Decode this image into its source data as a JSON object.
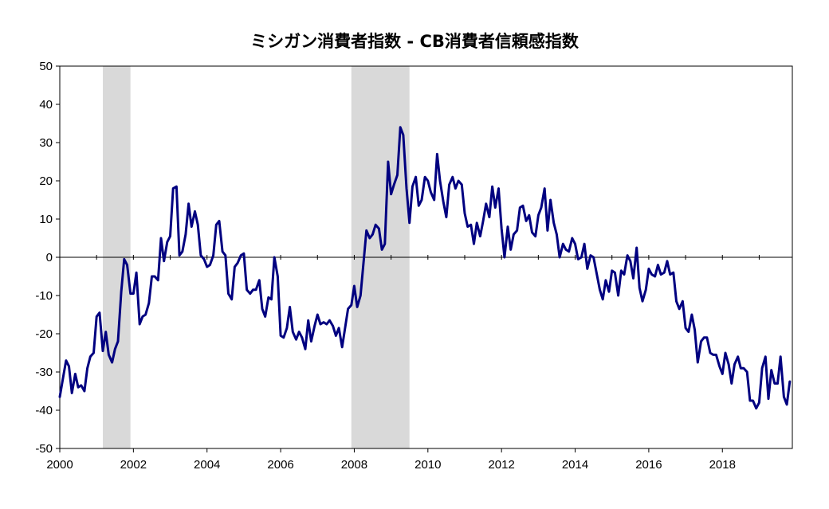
{
  "chart_data": {
    "type": "line",
    "title": "ミシガン消費者指数 - CB消費者信頼感指数",
    "xlabel": "",
    "ylabel": "",
    "xlim": [
      2000.0,
      2019.9
    ],
    "ylim": [
      -50,
      50
    ],
    "x_ticks": [
      2000,
      2002,
      2004,
      2006,
      2008,
      2010,
      2012,
      2014,
      2016,
      2018
    ],
    "x_tick_labels": [
      "2000",
      "2002",
      "2004",
      "2006",
      "2008",
      "2010",
      "2012",
      "2014",
      "2016",
      "2018"
    ],
    "y_ticks": [
      50,
      40,
      30,
      20,
      10,
      0,
      -10,
      -20,
      -30,
      -40,
      -50
    ],
    "y_tick_labels": [
      "50",
      "40",
      "30",
      "20",
      "10",
      "0",
      "-10",
      "-20",
      "-30",
      "-40",
      "-50"
    ],
    "grid": false,
    "zero_line": true,
    "line_color": "#000080",
    "shade_color": "#d9d9d9",
    "shaded_periods": [
      [
        2001.17,
        2001.92
      ],
      [
        2007.92,
        2009.5
      ]
    ],
    "series": [
      {
        "x": [
          2000.0,
          2000.08,
          2000.17,
          2000.25,
          2000.33,
          2000.42,
          2000.5,
          2000.58,
          2000.67,
          2000.75,
          2000.83,
          2000.92,
          2001.0,
          2001.08,
          2001.17,
          2001.25,
          2001.33,
          2001.42,
          2001.5,
          2001.58,
          2001.67,
          2001.75,
          2001.83,
          2001.92,
          2002.0,
          2002.08,
          2002.17,
          2002.25,
          2002.33,
          2002.42,
          2002.5,
          2002.58,
          2002.67,
          2002.75,
          2002.83,
          2002.92,
          2003.0,
          2003.08,
          2003.17,
          2003.25,
          2003.33,
          2003.42,
          2003.5,
          2003.58,
          2003.67,
          2003.75,
          2003.83,
          2003.92,
          2004.0,
          2004.08,
          2004.17,
          2004.25,
          2004.33,
          2004.42,
          2004.5,
          2004.58,
          2004.67,
          2004.75,
          2004.83,
          2004.92,
          2005.0,
          2005.08,
          2005.17,
          2005.25,
          2005.33,
          2005.42,
          2005.5,
          2005.58,
          2005.67,
          2005.75,
          2005.83,
          2005.92,
          2006.0,
          2006.08,
          2006.17,
          2006.25,
          2006.33,
          2006.42,
          2006.5,
          2006.58,
          2006.67,
          2006.75,
          2006.83,
          2006.92,
          2007.0,
          2007.08,
          2007.17,
          2007.25,
          2007.33,
          2007.42,
          2007.5,
          2007.58,
          2007.67,
          2007.75,
          2007.83,
          2007.92,
          2008.0,
          2008.08,
          2008.17,
          2008.25,
          2008.33,
          2008.42,
          2008.5,
          2008.58,
          2008.67,
          2008.75,
          2008.83,
          2008.92,
          2009.0,
          2009.08,
          2009.17,
          2009.25,
          2009.33,
          2009.42,
          2009.5,
          2009.58,
          2009.67,
          2009.75,
          2009.83,
          2009.92,
          2010.0,
          2010.08,
          2010.17,
          2010.25,
          2010.33,
          2010.42,
          2010.5,
          2010.58,
          2010.67,
          2010.75,
          2010.83,
          2010.92,
          2011.0,
          2011.08,
          2011.17,
          2011.25,
          2011.33,
          2011.42,
          2011.5,
          2011.58,
          2011.67,
          2011.75,
          2011.83,
          2011.92,
          2012.0,
          2012.08,
          2012.17,
          2012.25,
          2012.33,
          2012.42,
          2012.5,
          2012.58,
          2012.67,
          2012.75,
          2012.83,
          2012.92,
          2013.0,
          2013.08,
          2013.17,
          2013.25,
          2013.33,
          2013.42,
          2013.5,
          2013.58,
          2013.67,
          2013.75,
          2013.83,
          2013.92,
          2014.0,
          2014.08,
          2014.17,
          2014.25,
          2014.33,
          2014.42,
          2014.5,
          2014.58,
          2014.67,
          2014.75,
          2014.83,
          2014.92,
          2015.0,
          2015.08,
          2015.17,
          2015.25,
          2015.33,
          2015.42,
          2015.5,
          2015.58,
          2015.67,
          2015.75,
          2015.83,
          2015.92,
          2016.0,
          2016.08,
          2016.17,
          2016.25,
          2016.33,
          2016.42,
          2016.5,
          2016.58,
          2016.67,
          2016.75,
          2016.83,
          2016.92,
          2017.0,
          2017.08,
          2017.17,
          2017.25,
          2017.33,
          2017.42,
          2017.5,
          2017.58,
          2017.67,
          2017.75,
          2017.83,
          2017.92,
          2018.0,
          2018.08,
          2018.17,
          2018.25,
          2018.33,
          2018.42,
          2018.5,
          2018.58,
          2018.67,
          2018.75,
          2018.83,
          2018.92,
          2019.0,
          2019.08,
          2019.17,
          2019.25,
          2019.33,
          2019.42,
          2019.5,
          2019.58,
          2019.67,
          2019.75,
          2019.83
        ],
        "values": [
          -36.5,
          -32,
          -27,
          -28.5,
          -35.5,
          -30.5,
          -34,
          -33.5,
          -35,
          -29,
          -26,
          -25,
          -15.5,
          -14.5,
          -24.5,
          -19.5,
          -25.5,
          -27.5,
          -24,
          -22,
          -9,
          -0.5,
          -2,
          -9.5,
          -9.5,
          -4,
          -17.5,
          -15.5,
          -15,
          -12,
          -5,
          -5,
          -6,
          5,
          -1,
          4,
          5.5,
          18,
          18.5,
          0.5,
          1.5,
          6,
          14,
          8,
          12,
          8.5,
          0.5,
          -0.5,
          -2.5,
          -2,
          0.5,
          8.5,
          9.5,
          1.5,
          0.5,
          -9.5,
          -11,
          -2.5,
          -1.5,
          0.5,
          1,
          -8.5,
          -9.5,
          -8.5,
          -8.5,
          -6,
          -13.5,
          -15.5,
          -10.5,
          -11,
          0,
          -5,
          -20.5,
          -21,
          -18.5,
          -13,
          -19.5,
          -21.5,
          -19.5,
          -21,
          -24,
          -16.5,
          -22,
          -18,
          -15,
          -17.5,
          -17,
          -17.5,
          -16.5,
          -18,
          -20.5,
          -18.5,
          -23.5,
          -18.5,
          -13.5,
          -12.5,
          -7.5,
          -13,
          -10,
          -1.5,
          7,
          5,
          6,
          8.5,
          7.5,
          2,
          3.5,
          25,
          16.5,
          19,
          21.5,
          34,
          32,
          18,
          9,
          18.5,
          21,
          13.5,
          15,
          21,
          20,
          17,
          15,
          27,
          20,
          14.5,
          10.5,
          19,
          21,
          18,
          20,
          19,
          11.5,
          8,
          8.5,
          3.5,
          9,
          5.5,
          9.5,
          14,
          10.5,
          18.5,
          13,
          18,
          7.5,
          0,
          8,
          2,
          6,
          7,
          13,
          13.5,
          9.5,
          11,
          6.5,
          5.5,
          11,
          13,
          18,
          7,
          15,
          9,
          6,
          0,
          3.5,
          2,
          1.5,
          5,
          3.5,
          -0.5,
          0,
          3.5,
          -3,
          0.5,
          0,
          -4,
          -8.5,
          -11,
          -6,
          -9,
          -3.5,
          -4,
          -10,
          -3.5,
          -4.5,
          0.5,
          -1,
          -5.5,
          2.5,
          -8,
          -11.5,
          -8.5,
          -3,
          -4.5,
          -5,
          -2,
          -4.5,
          -4,
          -1,
          -4.5,
          -4,
          -11.5,
          -13.5,
          -11.5,
          -18.5,
          -19.5,
          -15,
          -19,
          -27.5,
          -22,
          -21,
          -21,
          -25,
          -25.5,
          -25.5,
          -28.5,
          -30.5,
          -25,
          -28,
          -33,
          -28,
          -26,
          -29,
          -29,
          -30,
          -37.5,
          -37.5,
          -39.5,
          -38,
          -29,
          -26,
          -37,
          -29.5,
          -33,
          -33,
          -26,
          -36.5,
          -38.5,
          -32.5
        ]
      }
    ]
  }
}
